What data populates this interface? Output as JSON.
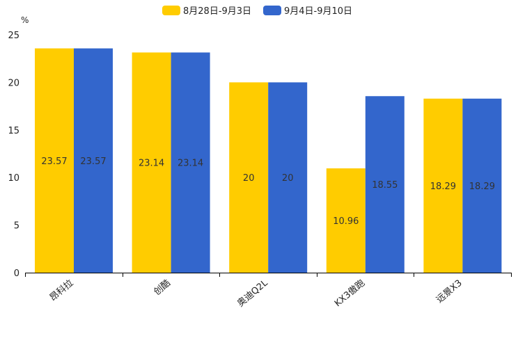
{
  "chart_data": {
    "type": "bar",
    "title": "",
    "xlabel": "",
    "ylabel": "%",
    "ylim": [
      0,
      25
    ],
    "yticks": [
      0,
      5,
      10,
      15,
      20,
      25
    ],
    "categories": [
      "昂科拉",
      "创酷",
      "奥迪Q2L",
      "KX3傲跑",
      "远景X3"
    ],
    "series": [
      {
        "name": "8月28日-9月3日",
        "color": "#FFCC00",
        "values": [
          23.57,
          23.14,
          20,
          10.96,
          18.29
        ],
        "labels": [
          "23.57",
          "23.14",
          "20",
          "10.96",
          "18.29"
        ]
      },
      {
        "name": "9月4日-9月10日",
        "color": "#3366CC",
        "values": [
          23.57,
          23.14,
          20,
          18.55,
          18.29
        ],
        "labels": [
          "23.57",
          "23.14",
          "20",
          "18.55",
          "18.29"
        ]
      }
    ],
    "legend_position": "top-center",
    "grid": false
  }
}
